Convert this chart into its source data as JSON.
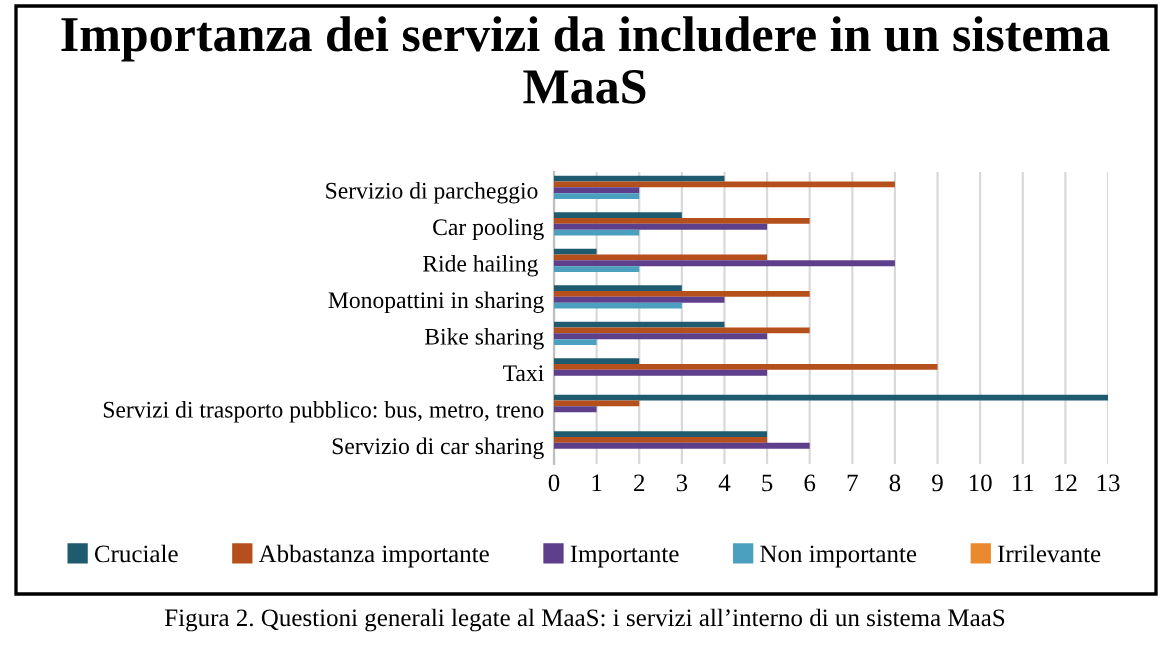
{
  "chart_data": {
    "type": "bar",
    "orientation": "horizontal",
    "title": "Importanza dei servizi da includere in un sistema MaaS",
    "categories": [
      "Servizio di parcheggio ",
      "Car pooling",
      "Ride hailing ",
      "Monopattini in sharing",
      "Bike sharing",
      "Taxi",
      "Servizi di trasporto pubblico: bus, metro, treno",
      "Servizio di car sharing"
    ],
    "series": [
      {
        "name": "Cruciale",
        "color": "#1f5b6e",
        "values": [
          4,
          3,
          1,
          3,
          4,
          2,
          13,
          5
        ]
      },
      {
        "name": "Abbastanza importante",
        "color": "#b5501c",
        "values": [
          8,
          6,
          5,
          6,
          6,
          9,
          2,
          5
        ]
      },
      {
        "name": "Importante",
        "color": "#5e3f8c",
        "values": [
          2,
          5,
          8,
          4,
          5,
          5,
          1,
          6
        ]
      },
      {
        "name": "Non importante",
        "color": "#4ba0c0",
        "values": [
          2,
          2,
          2,
          3,
          1,
          0,
          0,
          0
        ]
      },
      {
        "name": "Irrilevante",
        "color": "#e98a2e",
        "values": [
          0,
          0,
          0,
          0,
          0,
          0,
          0,
          0
        ]
      }
    ],
    "xlim": [
      0,
      13
    ],
    "xticks": [
      0,
      1,
      2,
      3,
      4,
      5,
      6,
      7,
      8,
      9,
      10,
      11,
      12,
      13
    ],
    "grid": "x",
    "legend": "bottom",
    "annotations": [
      "Figura 2. Questioni generali legate al MaaS: i servizi all’interno di un sistema MaaS"
    ]
  }
}
